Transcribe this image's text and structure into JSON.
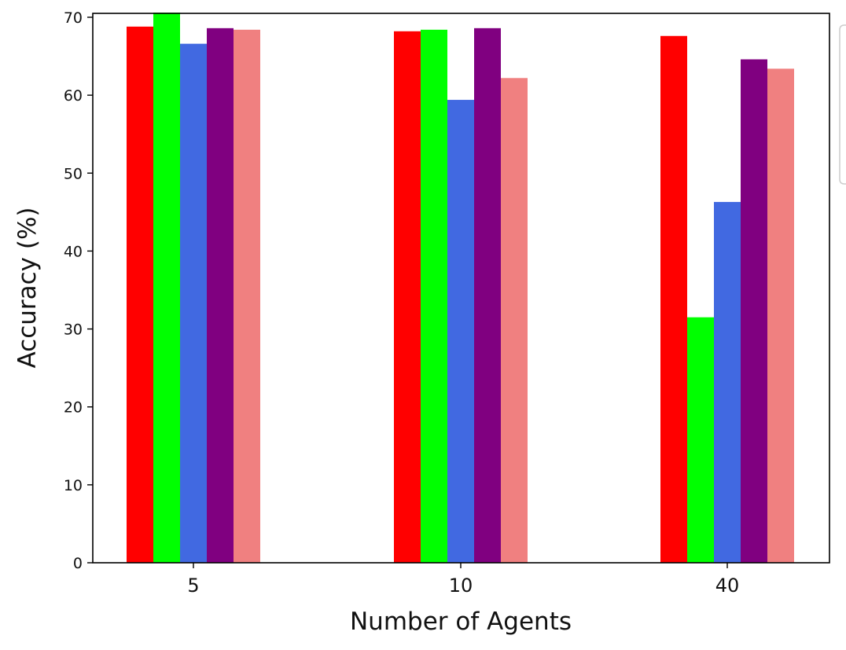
{
  "chart_data": {
    "type": "bar",
    "title": "",
    "xlabel": "Number of Agents",
    "ylabel": "Accuracy (%)",
    "categories": [
      "5",
      "10",
      "40"
    ],
    "ylim": [
      0,
      70.5
    ],
    "yticks": [
      "0",
      "10",
      "20",
      "30",
      "40",
      "50",
      "60",
      "70"
    ],
    "grid": false,
    "legend": "partially visible at right edge, entries cut off",
    "series": [
      {
        "color": "#ff0000",
        "values": [
          68.8,
          68.2,
          67.6
        ]
      },
      {
        "color": "#00ff00",
        "values": [
          70.6,
          68.4,
          31.5
        ]
      },
      {
        "color": "#4169e1",
        "values": [
          66.6,
          59.4,
          46.3
        ]
      },
      {
        "color": "#800080",
        "values": [
          68.6,
          68.6,
          64.6
        ]
      },
      {
        "color": "#f08080",
        "values": [
          68.4,
          62.2,
          63.4
        ]
      }
    ]
  }
}
